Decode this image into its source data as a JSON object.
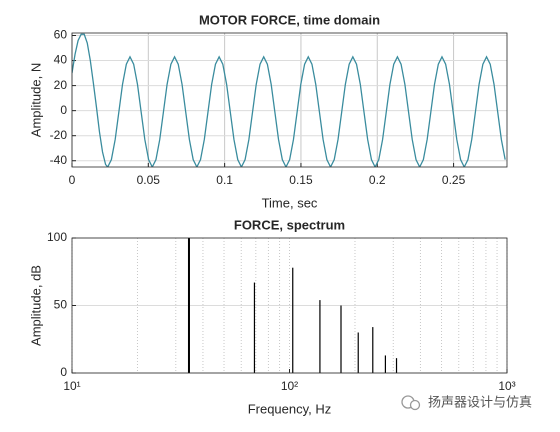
{
  "chart_data": [
    {
      "type": "line",
      "title": "MOTOR FORCE, time domain",
      "xlabel": "Time, sec",
      "ylabel": "Amplitude, N",
      "color": "#3a8c9e",
      "xlim": [
        0,
        0.285
      ],
      "ylim": [
        -45,
        62
      ],
      "xticks": [
        0,
        0.05,
        0.1,
        0.15,
        0.2,
        0.25
      ],
      "yticks": [
        -40,
        -20,
        0,
        20,
        40,
        60
      ],
      "grid": true,
      "log_x": false,
      "x": [
        0,
        0.002,
        0.004,
        0.006,
        0.008,
        0.01,
        0.012,
        0.014,
        0.016,
        0.018,
        0.02,
        0.022,
        0.0234,
        0.0258,
        0.0283,
        0.0307,
        0.0331,
        0.0356,
        0.038,
        0.0404,
        0.0429,
        0.0453,
        0.0477,
        0.0502,
        0.0526,
        0.055,
        0.0575,
        0.0599,
        0.0623,
        0.0648,
        0.0672,
        0.0696,
        0.0721,
        0.0745,
        0.0769,
        0.0794,
        0.0818,
        0.0842,
        0.0867,
        0.0891,
        0.0915,
        0.094,
        0.0964,
        0.0988,
        0.1013,
        0.1037,
        0.1061,
        0.1086,
        0.111,
        0.1134,
        0.1159,
        0.1183,
        0.1207,
        0.1232,
        0.1256,
        0.128,
        0.1305,
        0.1329,
        0.1353,
        0.1378,
        0.1402,
        0.1426,
        0.1451,
        0.1475,
        0.1499,
        0.1524,
        0.1548,
        0.1572,
        0.1597,
        0.1621,
        0.1645,
        0.167,
        0.1694,
        0.1718,
        0.1743,
        0.1767,
        0.1791,
        0.1816,
        0.184,
        0.1864,
        0.1889,
        0.1913,
        0.1937,
        0.1962,
        0.1986,
        0.201,
        0.2035,
        0.2059,
        0.2083,
        0.2108,
        0.2132,
        0.2156,
        0.2181,
        0.2205,
        0.2229,
        0.2254,
        0.2278,
        0.2302,
        0.2327,
        0.2351,
        0.2375,
        0.24,
        0.2424,
        0.2448,
        0.2473,
        0.2497,
        0.2521,
        0.2546,
        0.257,
        0.2594,
        0.2619,
        0.2643,
        0.2667,
        0.2692,
        0.2716,
        0.274,
        0.2765,
        0.2789,
        0.2813,
        0.2838
      ],
      "values": [
        30,
        45,
        56,
        61,
        61,
        54,
        40,
        22,
        3,
        -17,
        -33,
        -43,
        -45,
        -39.1,
        -23,
        -1,
        21,
        37.1,
        43,
        37.1,
        21,
        -1,
        -23,
        -39.1,
        -45,
        -39.1,
        -23,
        -1,
        21,
        37.1,
        43,
        37.1,
        21,
        -1,
        -23,
        -39.1,
        -45,
        -39.1,
        -23,
        -1,
        21,
        37.1,
        43,
        37.1,
        21,
        -1,
        -23,
        -39.1,
        -45,
        -39.1,
        -23,
        -1,
        21,
        37.1,
        43,
        37.1,
        21,
        -1,
        -23,
        -39.1,
        -45,
        -39.1,
        -23,
        -1,
        21,
        37.1,
        43,
        37.1,
        21,
        -1,
        -23,
        -39.1,
        -45,
        -39.1,
        -23,
        -1,
        21,
        37.1,
        43,
        37.1,
        21,
        -1,
        -23,
        -39.1,
        -45,
        -39.1,
        -23,
        -1,
        21,
        37.1,
        43,
        37.1,
        21,
        -1,
        -23,
        -39.1,
        -45,
        -39.1,
        -23,
        -1,
        21,
        37.1,
        43,
        37.1,
        21,
        -1,
        -23,
        -39.1,
        -45,
        -39.1,
        -23,
        -1,
        21,
        37.1,
        43,
        37.1,
        21,
        -1,
        -23,
        -39.1
      ]
    },
    {
      "type": "stem",
      "title": "FORCE, spectrum",
      "xlabel": "Frequency, Hz",
      "ylabel": "Amplitude, dB",
      "color": "#000000",
      "xlim": [
        10,
        1000
      ],
      "ylim": [
        0,
        100
      ],
      "xticks": [
        {
          "value": 10,
          "label": "10¹"
        },
        {
          "value": 100,
          "label": "10²"
        },
        {
          "value": 1000,
          "label": "10³"
        }
      ],
      "yticks": [
        0,
        50,
        100
      ],
      "grid": true,
      "log_x": true,
      "x": [
        34.5,
        69,
        103.5,
        138,
        172.5,
        207,
        241.5,
        276,
        310.5
      ],
      "values": [
        100,
        67,
        78,
        54,
        50,
        30,
        34,
        13,
        11
      ]
    }
  ],
  "watermark": "扬声器设计与仿真"
}
